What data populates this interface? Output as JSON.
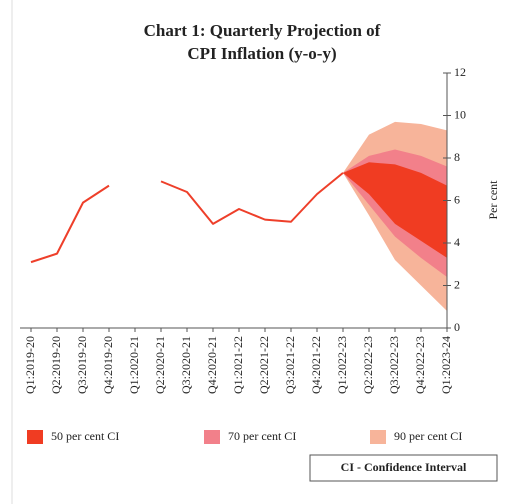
{
  "chart_data": {
    "type": "fan",
    "title": [
      "Chart 1: Quarterly Projection of",
      "CPI Inflation (y-o-y)"
    ],
    "ylabel": "Per cent",
    "y_axis_side": "right",
    "categories": [
      "Q1:2019-20",
      "Q2:2019-20",
      "Q3:2019-20",
      "Q4:2019-20",
      "Q1:2020-21",
      "Q2:2020-21",
      "Q3:2020-21",
      "Q4:2020-21",
      "Q1:2021-22",
      "Q2:2021-22",
      "Q3:2021-22",
      "Q4:2021-22",
      "Q1:2022-23",
      "Q2:2022-23",
      "Q3:2022-23",
      "Q4:2022-23",
      "Q1:2023-24"
    ],
    "series": [
      {
        "color": "#ee3f2a",
        "values": [
          3.1,
          3.5,
          5.9,
          6.7,
          null,
          6.9,
          6.4,
          4.9,
          5.6,
          5.1,
          5.0,
          6.3,
          7.3,
          null,
          null,
          null,
          null
        ]
      }
    ],
    "bands": [
      {
        "name": "90 per cent CI",
        "color": "#f7b49a",
        "upper": [
          null,
          null,
          null,
          null,
          null,
          null,
          null,
          null,
          null,
          null,
          null,
          null,
          7.3,
          9.1,
          9.7,
          9.6,
          9.3
        ],
        "lower": [
          null,
          null,
          null,
          null,
          null,
          null,
          null,
          null,
          null,
          null,
          null,
          null,
          7.3,
          5.3,
          3.2,
          2.0,
          0.8
        ]
      },
      {
        "name": "70 per cent CI",
        "color": "#f2808a",
        "upper": [
          null,
          null,
          null,
          null,
          null,
          null,
          null,
          null,
          null,
          null,
          null,
          null,
          7.3,
          8.1,
          8.4,
          8.1,
          7.6
        ],
        "lower": [
          null,
          null,
          null,
          null,
          null,
          null,
          null,
          null,
          null,
          null,
          null,
          null,
          7.3,
          5.8,
          4.3,
          3.3,
          2.4
        ]
      },
      {
        "name": "50 per cent CI",
        "color": "#f03c22",
        "upper": [
          null,
          null,
          null,
          null,
          null,
          null,
          null,
          null,
          null,
          null,
          null,
          null,
          7.3,
          7.8,
          7.7,
          7.3,
          6.7
        ],
        "lower": [
          null,
          null,
          null,
          null,
          null,
          null,
          null,
          null,
          null,
          null,
          null,
          null,
          7.3,
          6.3,
          4.9,
          4.1,
          3.3
        ]
      }
    ],
    "legend_order": [
      2,
      1,
      0
    ],
    "ylim": [
      0,
      12
    ],
    "yticks": [
      0,
      2,
      4,
      6,
      8,
      10,
      12
    ],
    "note": "CI - Confidence Interval"
  }
}
